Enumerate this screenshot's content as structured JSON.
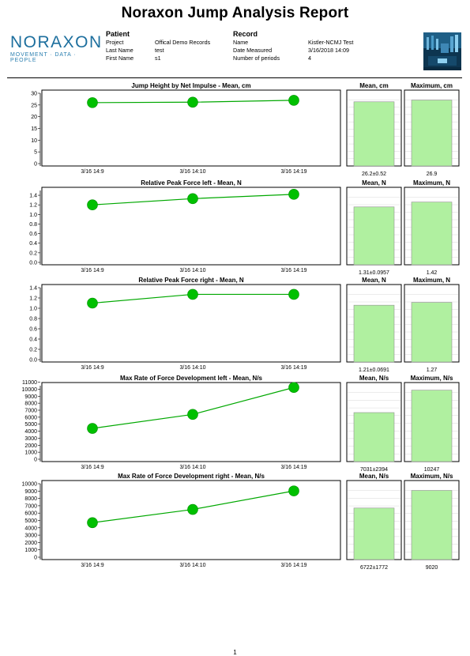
{
  "report": {
    "title": "Noraxon Jump Analysis Report",
    "page_number": "1"
  },
  "logo": {
    "brand": "NORAXON",
    "tagline": "MOVEMENT · DATA · PEOPLE"
  },
  "patient": {
    "heading": "Patient",
    "fields": [
      {
        "label": "Project",
        "value": "Offical Demo Records"
      },
      {
        "label": "Last Name",
        "value": "test"
      },
      {
        "label": "First Name",
        "value": "s1"
      }
    ]
  },
  "record": {
    "heading": "Record",
    "fields": [
      {
        "label": "Name",
        "value": "Kistler-NCMJ Test"
      },
      {
        "label": "Date Measured",
        "value": "3/16/2018 14:09"
      },
      {
        "label": "Number of periods",
        "value": "4"
      }
    ]
  },
  "colors": {
    "marker": "#00c000",
    "line": "#00a800",
    "bar_fill": "#b0f0a0",
    "bar_stroke": "#909090"
  },
  "chart_data": [
    {
      "type": "line",
      "title": "Jump Height by Net Impulse - Mean, cm",
      "categories": [
        "3/16 14:9",
        "3/16 14:10",
        "3/16 14:19"
      ],
      "values": [
        26.0,
        26.2,
        27.0
      ],
      "ylim": [
        0,
        30
      ],
      "yticks": [
        "0",
        "5",
        "10",
        "15",
        "20",
        "25",
        "30"
      ],
      "mean_panel": {
        "title": "Mean, cm",
        "value": 26.2,
        "label": "26.2±0.52"
      },
      "max_panel": {
        "title": "Maximum, cm",
        "value": 26.9,
        "label": "26.9"
      },
      "bar_ylim": [
        0,
        30
      ]
    },
    {
      "type": "line",
      "title": "Relative Peak Force left - Mean, N",
      "categories": [
        "3/16 14:9",
        "3/16 14:10",
        "3/16 14:19"
      ],
      "values": [
        1.2,
        1.33,
        1.42
      ],
      "ylim": [
        0,
        1.5
      ],
      "yticks": [
        "0.0",
        "0.2",
        "0.4",
        "0.6",
        "0.8",
        "1.0",
        "1.2",
        "1.4"
      ],
      "mean_panel": {
        "title": "Mean, N",
        "value": 1.31,
        "label": "1.31±0.0957"
      },
      "max_panel": {
        "title": "Maximum, N",
        "value": 1.42,
        "label": "1.42"
      },
      "bar_ylim": [
        0,
        1.7
      ]
    },
    {
      "type": "line",
      "title": "Relative Peak Force right - Mean, N",
      "categories": [
        "3/16 14:9",
        "3/16 14:10",
        "3/16 14:19"
      ],
      "values": [
        1.1,
        1.27,
        1.27
      ],
      "ylim": [
        0,
        1.4
      ],
      "yticks": [
        "0.0",
        "0.2",
        "0.4",
        "0.6",
        "0.8",
        "1.0",
        "1.2",
        "1.4"
      ],
      "mean_panel": {
        "title": "Mean, N",
        "value": 1.21,
        "label": "1.21±0.0691"
      },
      "max_panel": {
        "title": "Maximum, N",
        "value": 1.27,
        "label": "1.27"
      },
      "bar_ylim": [
        0,
        1.6
      ]
    },
    {
      "type": "line",
      "title": "Max Rate of Force Development left - Mean, N/s",
      "categories": [
        "3/16 14:9",
        "3/16 14:10",
        "3/16 14:19"
      ],
      "values": [
        4400,
        6400,
        10247
      ],
      "ylim": [
        0,
        10500
      ],
      "yticks": [
        "0",
        "1000",
        "2000",
        "3000",
        "4000",
        "5000",
        "6000",
        "7000",
        "8000",
        "9000",
        "10000",
        "11000"
      ],
      "mean_panel": {
        "title": "Mean, N/s",
        "value": 7031,
        "label": "7031±2394"
      },
      "max_panel": {
        "title": "Maximum, N/s",
        "value": 10247,
        "label": "10247"
      },
      "bar_ylim": [
        0,
        11000
      ]
    },
    {
      "type": "line",
      "title": "Max Rate of Force Development right - Mean, N/s",
      "categories": [
        "3/16 14:9",
        "3/16 14:10",
        "3/16 14:19"
      ],
      "values": [
        4700,
        6500,
        9020
      ],
      "ylim": [
        0,
        10000
      ],
      "yticks": [
        "0",
        "1000",
        "2000",
        "3000",
        "4000",
        "5000",
        "6000",
        "7000",
        "8000",
        "9000",
        "10000"
      ],
      "mean_panel": {
        "title": "Mean, N/s",
        "value": 6722,
        "label": "6722±1772"
      },
      "max_panel": {
        "title": "Maximum, N/s",
        "value": 9020,
        "label": "9020"
      },
      "bar_ylim": [
        0,
        10000
      ]
    }
  ]
}
